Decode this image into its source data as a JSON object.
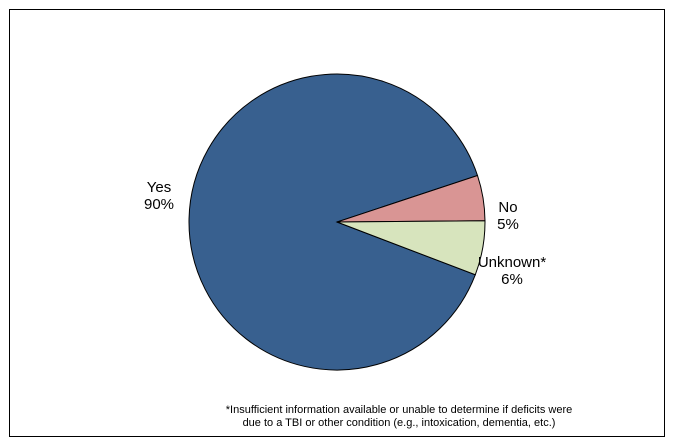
{
  "chart_data": {
    "type": "pie",
    "title": "",
    "slices": [
      {
        "label": "Yes",
        "value": 90,
        "value_label": "90%",
        "color": "#38608F"
      },
      {
        "label": "No",
        "value": 5,
        "value_label": "5%",
        "color": "#D99594"
      },
      {
        "label": "Unknown*",
        "value": 6,
        "value_label": "6%",
        "color": "#D7E4BD"
      }
    ],
    "legend": "none",
    "slice_edge_color": "#000000"
  },
  "footnote": {
    "line1": "*Insufficient information available or unable to determine if deficits were",
    "line2": "due to a TBI or other condition (e.g., intoxication, dementia, etc.)"
  }
}
